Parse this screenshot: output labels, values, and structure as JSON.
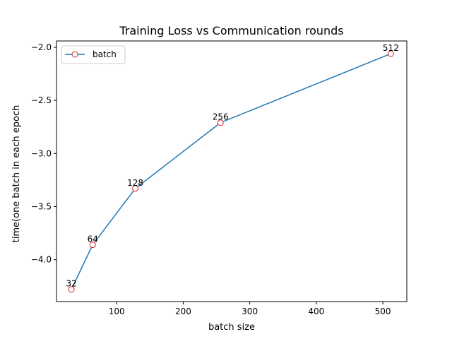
{
  "chart_data": {
    "type": "line",
    "title": "Training Loss vs Communication rounds",
    "xlabel": "batch size",
    "ylabel": "time(one batch in each epoch",
    "xlim": [
      9.6,
      536.0
    ],
    "ylim": [
      -4.395,
      -1.94
    ],
    "xticks": [
      100,
      200,
      300,
      400,
      500
    ],
    "yticks": [
      -4.0,
      -3.5,
      -3.0,
      -2.5,
      -2.0
    ],
    "xtick_labels": [
      "100",
      "200",
      "300",
      "400",
      "500"
    ],
    "ytick_labels": [
      "−4.0",
      "−3.5",
      "−3.0",
      "−2.5",
      "−2.0"
    ],
    "grid": false,
    "legend_position": "upper-left",
    "series": [
      {
        "name": "batch",
        "color": "#1f77b4",
        "marker_edge_color": "#d62728",
        "marker_face_color": "#ffffff",
        "x": [
          32,
          64,
          128,
          256,
          512
        ],
        "y": [
          -4.28,
          -3.86,
          -3.33,
          -2.71,
          -2.06
        ],
        "point_labels": [
          "32",
          "64",
          "128",
          "256",
          "512"
        ]
      }
    ]
  }
}
